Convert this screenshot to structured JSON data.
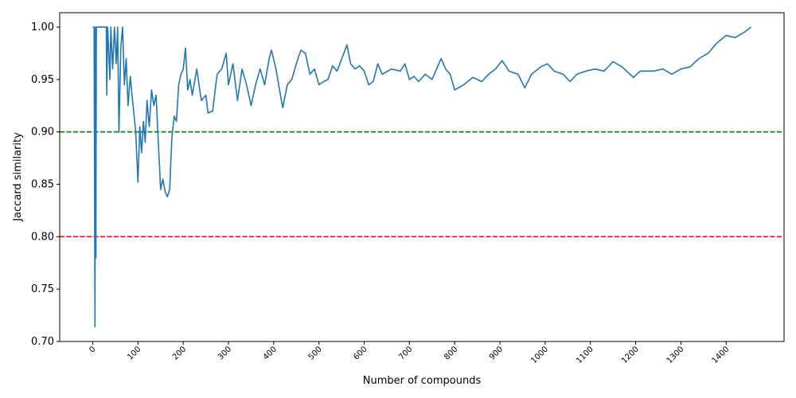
{
  "chart_data": {
    "type": "line",
    "x_label": "Number of compounds",
    "y_label": "Jaccard similarity",
    "xlim": [
      -73,
      1528
    ],
    "ylim": [
      0.7,
      1.0137
    ],
    "xticks": [
      0,
      100,
      200,
      300,
      400,
      500,
      600,
      700,
      800,
      900,
      1000,
      1100,
      1200,
      1300,
      1400
    ],
    "yticks": [
      {
        "value": 0.7,
        "label": "0.70"
      },
      {
        "value": 0.75,
        "label": "0.75"
      },
      {
        "value": 0.8,
        "label": "0.80"
      },
      {
        "value": 0.85,
        "label": "0.85"
      },
      {
        "value": 0.9,
        "label": "0.90"
      },
      {
        "value": 0.95,
        "label": "0.95"
      },
      {
        "value": 1.0,
        "label": "1.00"
      }
    ],
    "hlines": [
      {
        "value": 0.9,
        "color": "#008000"
      },
      {
        "value": 0.8,
        "color": "#ff0000"
      }
    ],
    "series": [
      {
        "color": "#1f77b4",
        "x": [
          0,
          3,
          5,
          6,
          7,
          8,
          30,
          31,
          33,
          38,
          40,
          44,
          48,
          52,
          55,
          58,
          62,
          66,
          70,
          74,
          78,
          83,
          88,
          95,
          100,
          104,
          108,
          112,
          116,
          120,
          125,
          130,
          135,
          140,
          145,
          150,
          155,
          160,
          165,
          170,
          175,
          180,
          185,
          190,
          195,
          200,
          205,
          210,
          215,
          220,
          230,
          240,
          250,
          255,
          265,
          275,
          285,
          295,
          300,
          310,
          320,
          330,
          340,
          350,
          360,
          370,
          380,
          390,
          395,
          405,
          415,
          420,
          430,
          440,
          450,
          460,
          470,
          480,
          490,
          500,
          510,
          520,
          530,
          540,
          555,
          562,
          570,
          580,
          590,
          600,
          610,
          620,
          630,
          640,
          660,
          680,
          690,
          700,
          710,
          720,
          735,
          750,
          770,
          780,
          790,
          800,
          820,
          840,
          860,
          875,
          890,
          905,
          920,
          940,
          955,
          970,
          990,
          1005,
          1020,
          1040,
          1055,
          1070,
          1090,
          1110,
          1130,
          1150,
          1170,
          1195,
          1210,
          1240,
          1260,
          1280,
          1300,
          1320,
          1340,
          1360,
          1380,
          1400,
          1420,
          1440,
          1455
        ],
        "values": [
          1.0,
          1.0,
          0.714,
          1.0,
          0.78,
          1.0,
          1.0,
          0.935,
          1.0,
          0.95,
          1.0,
          0.96,
          1.0,
          0.965,
          1.0,
          0.9,
          0.98,
          1.0,
          0.945,
          0.97,
          0.925,
          0.953,
          0.93,
          0.9,
          0.852,
          0.905,
          0.88,
          0.91,
          0.89,
          0.93,
          0.905,
          0.94,
          0.925,
          0.935,
          0.89,
          0.845,
          0.855,
          0.843,
          0.838,
          0.845,
          0.895,
          0.915,
          0.91,
          0.945,
          0.955,
          0.96,
          0.98,
          0.94,
          0.95,
          0.935,
          0.96,
          0.93,
          0.935,
          0.918,
          0.92,
          0.955,
          0.96,
          0.975,
          0.945,
          0.965,
          0.93,
          0.96,
          0.945,
          0.925,
          0.945,
          0.96,
          0.945,
          0.97,
          0.978,
          0.96,
          0.935,
          0.923,
          0.945,
          0.95,
          0.965,
          0.978,
          0.975,
          0.955,
          0.96,
          0.945,
          0.948,
          0.95,
          0.963,
          0.958,
          0.975,
          0.983,
          0.965,
          0.96,
          0.963,
          0.958,
          0.945,
          0.948,
          0.965,
          0.955,
          0.96,
          0.958,
          0.965,
          0.95,
          0.953,
          0.948,
          0.955,
          0.95,
          0.97,
          0.96,
          0.955,
          0.94,
          0.945,
          0.952,
          0.948,
          0.955,
          0.96,
          0.968,
          0.958,
          0.955,
          0.942,
          0.955,
          0.962,
          0.965,
          0.958,
          0.955,
          0.948,
          0.955,
          0.958,
          0.96,
          0.958,
          0.967,
          0.962,
          0.952,
          0.958,
          0.958,
          0.96,
          0.955,
          0.96,
          0.962,
          0.97,
          0.975,
          0.985,
          0.992,
          0.99,
          0.995,
          1.0
        ]
      }
    ]
  }
}
